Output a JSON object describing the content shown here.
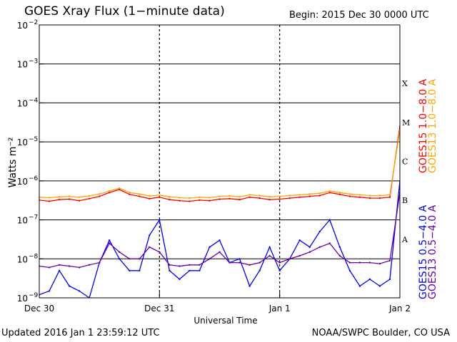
{
  "header": {
    "title": "GOES Xray Flux (1−minute data)",
    "begin": "Begin:  2015 Dec 30 0000 UTC"
  },
  "footer": {
    "updated": "Updated 2016 Jan  1 23:59:12 UTC",
    "credit": "NOAA/SWPC Boulder, CO USA"
  },
  "chart_data": {
    "type": "line",
    "title": "GOES Xray Flux (1−minute data)",
    "xlabel": "Universal Time",
    "ylabel": "Watts m⁻²",
    "yscale": "log",
    "ylim": [
      1e-09,
      0.01
    ],
    "xlim_hours": [
      0,
      72
    ],
    "x_ticks": [
      {
        "label": "Dec 30",
        "hour": 0
      },
      {
        "label": "Dec 31",
        "hour": 24
      },
      {
        "label": "Jan 1",
        "hour": 48
      },
      {
        "label": "Jan 2",
        "hour": 72
      }
    ],
    "y_ticks": [
      {
        "exp": -9,
        "label": "10",
        "sup": "−9"
      },
      {
        "exp": -8,
        "label": "10",
        "sup": "−8"
      },
      {
        "exp": -7,
        "label": "10",
        "sup": "−7"
      },
      {
        "exp": -6,
        "label": "10",
        "sup": "−6"
      },
      {
        "exp": -5,
        "label": "10",
        "sup": "−5"
      },
      {
        "exp": -4,
        "label": "10",
        "sup": "−4"
      },
      {
        "exp": -3,
        "label": "10",
        "sup": "−3"
      },
      {
        "exp": -2,
        "label": "10",
        "sup": "−2"
      }
    ],
    "flare_classes": [
      {
        "label": "A",
        "exp": -7.5
      },
      {
        "label": "B",
        "exp": -6.5
      },
      {
        "label": "C",
        "exp": -5.5
      },
      {
        "label": "M",
        "exp": -4.5
      },
      {
        "label": "X",
        "exp": -3.5
      }
    ],
    "grid": "horizontal lines at each decade; dotted vertical lines at day boundaries",
    "legend_position": "right, vertical",
    "series": [
      {
        "name": "GOES15 1.0−8.0 A",
        "color": "#ff0000",
        "x_hours": [
          0,
          2,
          4,
          6,
          8,
          10,
          12,
          14,
          16,
          18,
          20,
          22,
          24,
          26,
          28,
          30,
          32,
          34,
          36,
          38,
          40,
          42,
          44,
          46,
          48,
          50,
          52,
          54,
          56,
          58,
          60,
          62,
          64,
          66,
          68,
          70,
          72
        ],
        "y": [
          3.2e-07,
          3e-07,
          3.3e-07,
          3.4e-07,
          3.1e-07,
          3.5e-07,
          4e-07,
          5e-07,
          6e-07,
          4.5e-07,
          4e-07,
          3.5e-07,
          3.8e-07,
          3.3e-07,
          3.1e-07,
          3e-07,
          3.2e-07,
          3.1e-07,
          3.4e-07,
          3.5e-07,
          3.3e-07,
          3.8e-07,
          3.6e-07,
          3.3e-07,
          3.4e-07,
          3.6e-07,
          3.8e-07,
          4e-07,
          4.2e-07,
          5e-07,
          4.5e-07,
          4e-07,
          3.8e-07,
          3.6e-07,
          3.6e-07,
          3.8e-07,
          2.5e-05
        ]
      },
      {
        "name": "GOES13 1.0−8.0 A",
        "color": "#ffa500",
        "x_hours": [
          0,
          2,
          4,
          6,
          8,
          10,
          12,
          14,
          16,
          18,
          20,
          22,
          24,
          26,
          28,
          30,
          32,
          34,
          36,
          38,
          40,
          42,
          44,
          46,
          48,
          50,
          52,
          54,
          56,
          58,
          60,
          62,
          64,
          66,
          68,
          70,
          72
        ],
        "y": [
          3.8e-07,
          3.7e-07,
          3.9e-07,
          4e-07,
          3.8e-07,
          4.1e-07,
          4.6e-07,
          5.5e-07,
          6.5e-07,
          5e-07,
          4.6e-07,
          4.1e-07,
          4.3e-07,
          3.9e-07,
          3.7e-07,
          3.6e-07,
          3.8e-07,
          3.7e-07,
          4e-07,
          4.1e-07,
          3.9e-07,
          4.4e-07,
          4.2e-07,
          3.9e-07,
          4e-07,
          4.2e-07,
          4.4e-07,
          4.6e-07,
          4.8e-07,
          5.5e-07,
          5e-07,
          4.6e-07,
          4.4e-07,
          4.2e-07,
          4.2e-07,
          4.4e-07,
          2e-05
        ]
      },
      {
        "name": "GOES15 0.5−4.0 A",
        "color": "#0000ff",
        "x_hours": [
          0,
          2,
          4,
          6,
          8,
          10,
          12,
          14,
          16,
          18,
          20,
          22,
          24,
          26,
          28,
          30,
          32,
          34,
          36,
          38,
          40,
          42,
          44,
          46,
          48,
          50,
          52,
          54,
          56,
          58,
          60,
          62,
          64,
          66,
          68,
          70,
          72
        ],
        "y": [
          1.2e-09,
          1.5e-09,
          5e-09,
          2e-09,
          1.5e-09,
          1e-09,
          8e-09,
          3e-08,
          1e-08,
          5e-09,
          5e-09,
          4e-08,
          1e-07,
          5e-09,
          3e-09,
          5e-09,
          5e-09,
          2e-08,
          3e-08,
          8e-09,
          1e-08,
          2e-09,
          5e-09,
          2e-08,
          5e-09,
          1e-08,
          3e-08,
          2e-08,
          5e-08,
          1e-07,
          2e-08,
          5e-09,
          2e-09,
          3e-09,
          2e-09,
          3e-09,
          1e-06
        ]
      },
      {
        "name": "GOES13 0.5−4.0 A",
        "color": "#6600aa",
        "x_hours": [
          0,
          2,
          4,
          6,
          8,
          10,
          12,
          14,
          16,
          18,
          20,
          22,
          24,
          26,
          28,
          30,
          32,
          34,
          36,
          38,
          40,
          42,
          44,
          46,
          48,
          50,
          52,
          54,
          56,
          58,
          60,
          62,
          64,
          66,
          68,
          70,
          72
        ],
        "y": [
          6.5e-09,
          6e-09,
          7e-09,
          6.5e-09,
          6e-09,
          7e-09,
          8e-09,
          2.5e-08,
          1.5e-08,
          1e-08,
          1e-08,
          2e-08,
          1.5e-08,
          7e-09,
          6.5e-09,
          7e-09,
          7e-09,
          1e-08,
          1.5e-08,
          8e-09,
          8e-09,
          7e-09,
          8e-09,
          1.2e-08,
          8e-09,
          1e-08,
          1.2e-08,
          1.5e-08,
          2e-08,
          2.5e-08,
          1.2e-08,
          8e-09,
          8e-09,
          8e-09,
          7.5e-09,
          9e-09,
          5e-07
        ]
      }
    ]
  }
}
